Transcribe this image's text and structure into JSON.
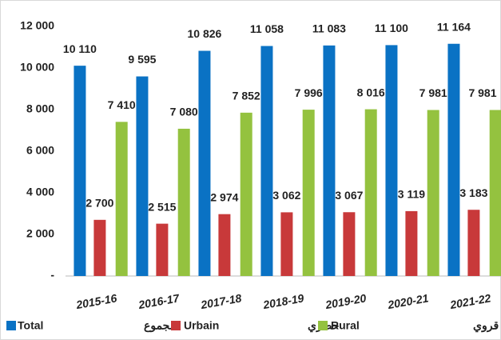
{
  "chart_data": {
    "type": "bar",
    "categories": [
      "2015-16",
      "2016-17",
      "2017-18",
      "2018-19",
      "2019-20",
      "2020-21",
      "2021-22"
    ],
    "series": [
      {
        "name": "Total",
        "name_ar": "مجموع",
        "color": "#0a72c4",
        "values": [
          10110,
          9595,
          10826,
          11058,
          11083,
          11100,
          11164
        ],
        "value_labels": [
          "10 110",
          "9 595",
          "10 826",
          "11 058",
          "11 083",
          "11 100",
          "11 164"
        ]
      },
      {
        "name": "Urbain",
        "name_ar": "حضري",
        "color": "#c8393a",
        "values": [
          2700,
          2515,
          2974,
          3062,
          3067,
          3119,
          3183
        ],
        "value_labels": [
          "2 700",
          "2 515",
          "2 974",
          "3 062",
          "3 067",
          "3 119",
          "3 183"
        ]
      },
      {
        "name": "Rural",
        "name_ar": "قروي",
        "color": "#94c23f",
        "values": [
          7410,
          7080,
          7852,
          7996,
          8016,
          7981,
          7981
        ],
        "value_labels": [
          "7 410",
          "7 080",
          "7 852",
          "7 996",
          "8 016",
          "7 981",
          "7 981"
        ]
      }
    ],
    "ylim": [
      0,
      12000
    ],
    "yticks": [
      {
        "value": 0,
        "label": "-"
      },
      {
        "value": 2000,
        "label": "2 000"
      },
      {
        "value": 4000,
        "label": "4 000"
      },
      {
        "value": 6000,
        "label": "6 000"
      },
      {
        "value": 8000,
        "label": "8 000"
      },
      {
        "value": 10000,
        "label": "10 000"
      },
      {
        "value": 12000,
        "label": "12 000"
      }
    ],
    "grid": false
  }
}
